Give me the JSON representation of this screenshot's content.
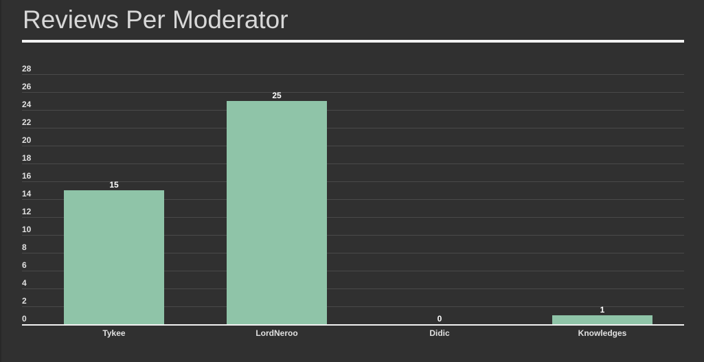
{
  "page": {
    "title": "Reviews Per Moderator"
  },
  "colors": {
    "background": "#303030",
    "bar": "#8fc4a8",
    "gridline": "#4a4a4a",
    "axis": "#f2f2f2",
    "text": "#e0e0e0",
    "title": "#d8d8d8"
  },
  "chart_data": {
    "type": "bar",
    "title": "Reviews Per Moderator",
    "xlabel": "",
    "ylabel": "",
    "categories": [
      "Tykee",
      "LordNeroo",
      "Didic",
      "Knowledges"
    ],
    "values": [
      15,
      25,
      0,
      1
    ],
    "data_labels": [
      "15",
      "25",
      "0",
      "1"
    ],
    "ylim": [
      0,
      28
    ],
    "yticks": [
      0,
      2,
      4,
      6,
      8,
      10,
      12,
      14,
      16,
      18,
      20,
      22,
      24,
      26,
      28
    ],
    "grid": true,
    "legend": "none"
  }
}
